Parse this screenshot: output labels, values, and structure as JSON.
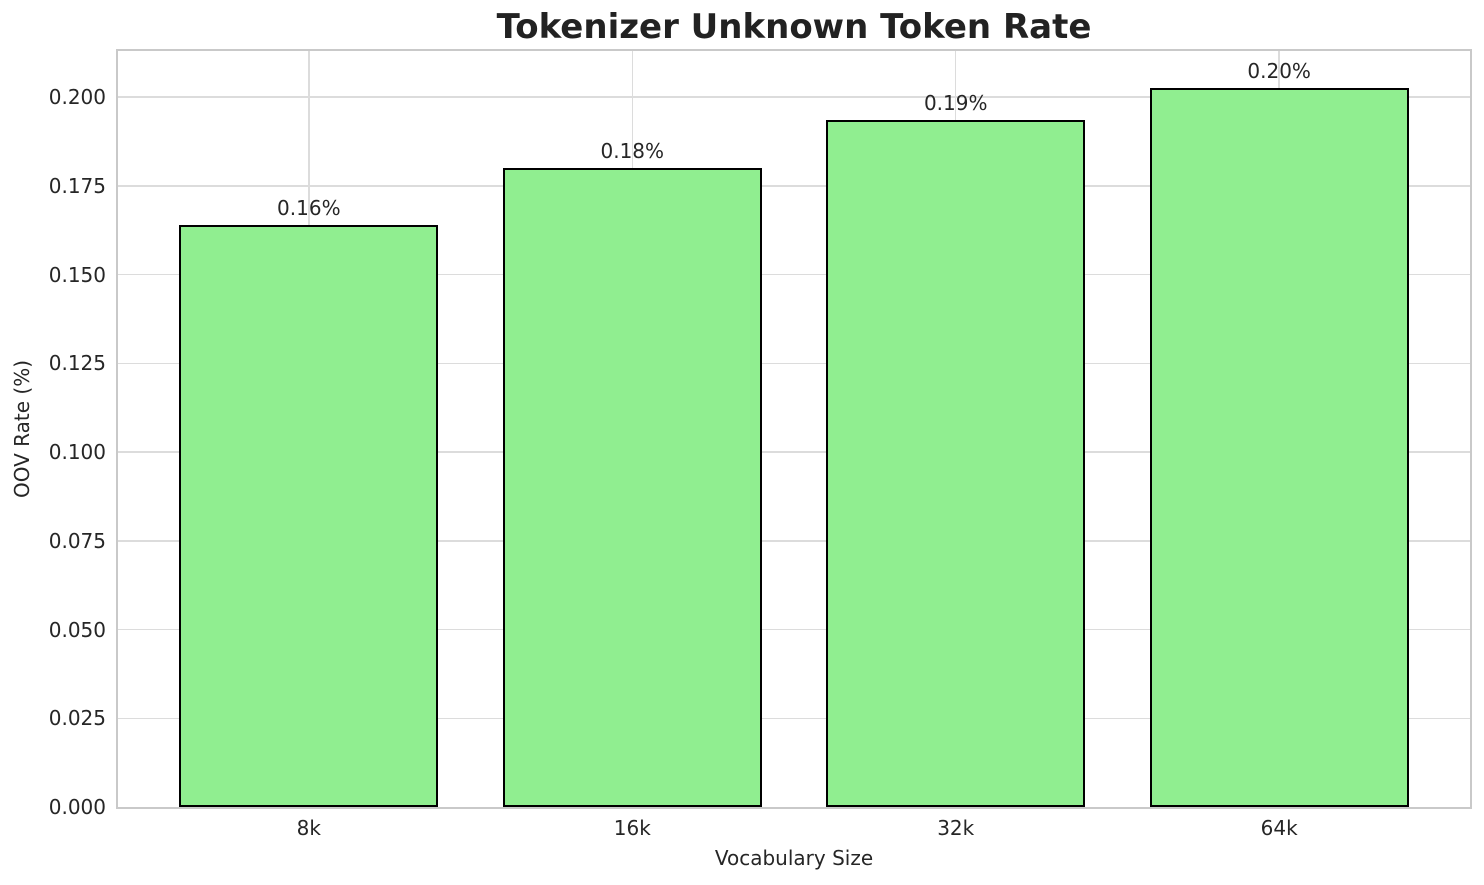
{
  "chart_data": {
    "type": "bar",
    "title": "Tokenizer Unknown Token Rate",
    "xlabel": "Vocabulary Size",
    "ylabel": "OOV Rate (%)",
    "categories": [
      "8k",
      "16k",
      "32k",
      "64k"
    ],
    "values": [
      0.164,
      0.18,
      0.1935,
      0.2025
    ],
    "bar_labels": [
      "0.16%",
      "0.18%",
      "0.19%",
      "0.20%"
    ],
    "ytick_values": [
      0.0,
      0.025,
      0.05,
      0.075,
      0.1,
      0.125,
      0.15,
      0.175,
      0.2
    ],
    "ytick_labels": [
      "0.000",
      "0.025",
      "0.050",
      "0.075",
      "0.100",
      "0.125",
      "0.150",
      "0.175",
      "0.200"
    ],
    "ylim": [
      0,
      0.213
    ],
    "xlim": [
      -0.59,
      3.59
    ],
    "bar_width": 0.8,
    "grid": true,
    "legend": "none",
    "colors": {
      "bar_fill": "#90EE90",
      "bar_edge": "#000000",
      "grid": "#dcdcdc",
      "spine": "#c9c9c9",
      "text": "#262626",
      "title": "#222222",
      "background": "#ffffff"
    }
  }
}
